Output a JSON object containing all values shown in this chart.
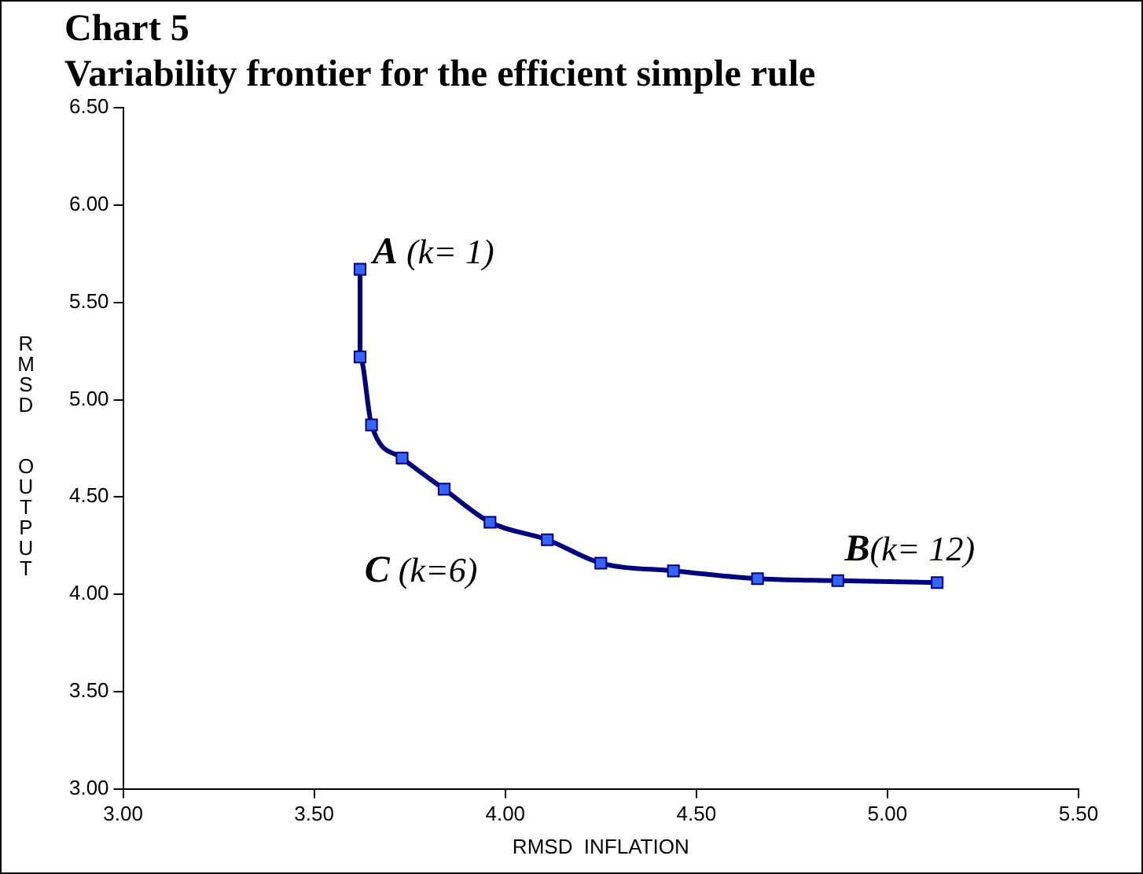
{
  "chart_data": {
    "type": "line",
    "title": "Chart 5",
    "subtitle": "Variability frontier for the efficient simple rule",
    "xlabel": "RMSD  INFLATION",
    "ylabel": "RMSD  OUTPUT",
    "x": [
      3.62,
      3.62,
      3.65,
      3.73,
      3.84,
      3.96,
      4.11,
      4.25,
      4.44,
      4.66,
      4.87,
      5.13
    ],
    "series": [
      {
        "color": "#000080",
        "values": [
          5.67,
          5.22,
          4.87,
          4.7,
          4.54,
          4.37,
          4.28,
          4.16,
          4.12,
          4.08,
          4.07,
          4.06
        ]
      }
    ],
    "xlim": [
      3.0,
      5.5
    ],
    "xticks": [
      {
        "value": 3,
        "label": "3.00"
      },
      {
        "value": 3.5,
        "label": "3.50"
      },
      {
        "value": 4,
        "label": "4.00"
      },
      {
        "value": 4.5,
        "label": "4.50"
      },
      {
        "value": 5,
        "label": "5.00"
      },
      {
        "value": 5.5,
        "label": "5.50"
      }
    ],
    "ylim": [
      3.0,
      6.5
    ],
    "yticks": [
      {
        "value": 3,
        "label": "3.00"
      },
      {
        "value": 3.5,
        "label": "3.50"
      },
      {
        "value": 4,
        "label": "4.00"
      },
      {
        "value": 4.5,
        "label": "4.50"
      },
      {
        "value": 5,
        "label": "5.00"
      },
      {
        "value": 5.5,
        "label": "5.50"
      },
      {
        "value": 6,
        "label": "6.00"
      },
      {
        "value": 6.5,
        "label": "6.50"
      }
    ],
    "annotations": [
      {
        "text": "A (k= 1)",
        "x": 3.62,
        "y": 5.67
      },
      {
        "text": "C (k=6)",
        "x": 3.96,
        "y": 4.37
      },
      {
        "text": "B(k= 12)",
        "x": 5.13,
        "y": 4.06
      }
    ],
    "grid": false,
    "legend": false,
    "marker": "square",
    "line_style": "solid"
  }
}
